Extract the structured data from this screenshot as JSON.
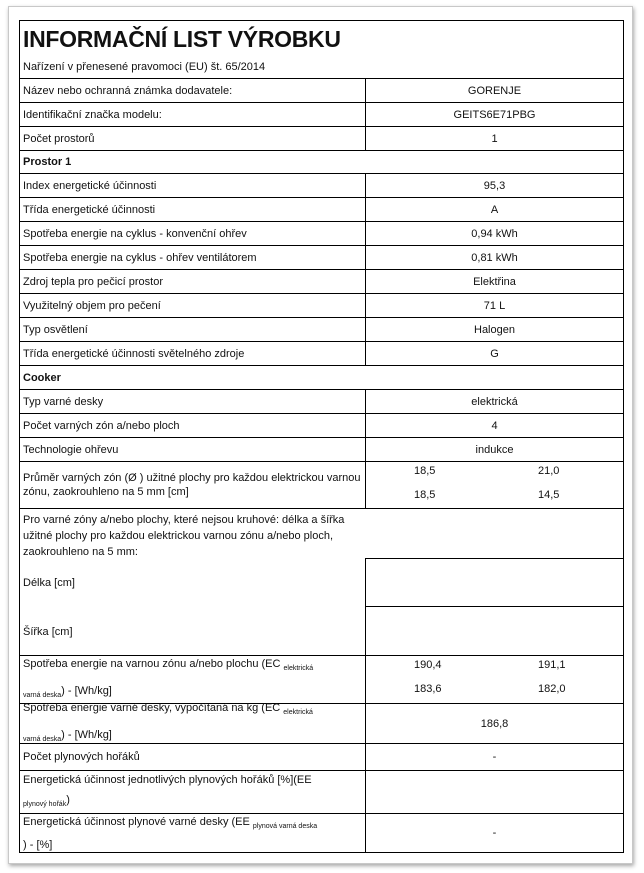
{
  "title": "INFORMAČNÍ LIST VÝROBKU",
  "regulation": "Nařízení v přenesené pravomoci (EU) št. 65/2014",
  "rows": [
    {
      "label": "Název nebo ochranná známka dodavatele:",
      "value": "GORENJE"
    },
    {
      "label": "Identifikační značka modelu:",
      "value": "GEITS6E71PBG"
    },
    {
      "label": "Počet prostorů",
      "value": "1"
    }
  ],
  "section1": "Prostor 1",
  "oven": [
    {
      "label": "Index energetické účinnosti",
      "value": "95,3"
    },
    {
      "label": "Třída energetické účinnosti",
      "value": "A"
    },
    {
      "label": "Spotřeba energie na cyklus - konvenční ohřev",
      "value": "0,94 kWh"
    },
    {
      "label": "Spotřeba energie na cyklus - ohřev ventilátorem",
      "value": "0,81 kWh"
    },
    {
      "label": "Zdroj tepla pro pečicí prostor",
      "value": "Elektřina"
    },
    {
      "label": "Využitelný objem pro pečení",
      "value": "71 L"
    },
    {
      "label": "Typ osvětlení",
      "value": "Halogen"
    },
    {
      "label": "Třída energetické účinnosti světelného zdroje",
      "value": "G"
    }
  ],
  "section2": "Cooker",
  "cooker": [
    {
      "label": "Typ varné desky",
      "value": "elektrická"
    },
    {
      "label": "Počet varných zón a/nebo ploch",
      "value": "4"
    },
    {
      "label": "Technologie ohřevu",
      "value": "indukce"
    }
  ],
  "diameter": {
    "label": "Průměr varných zón  (Ø ) užitné plochy pro každou elektrickou varnou zónu, zaokrouhleno na 5 mm [cm]",
    "values": [
      "18,5",
      "21,0",
      "18,5",
      "14,5"
    ]
  },
  "noncircular": {
    "label": "Pro varné zóny a/nebo plochy, které nejsou kruhové: délka a šířka užitné plochy pro každou elektrickou varnou zónu a/nebo ploch, zaokrouhleno na 5 mm:",
    "length": "Délka [cm]",
    "width": "Šířka [cm]"
  },
  "ec_zone": {
    "label_a": "Spotřeba energie na varnou zónu a/nebo plochu (EC ",
    "sub_a": "elektrická",
    "sub_b": "varná deska",
    "label_b": ") - [Wh/kg]",
    "values": [
      "190,4",
      "191,1",
      "183,6",
      "182,0"
    ]
  },
  "ec_hob": {
    "label_a": "Spotřeba energie varné desky, vypočítaná na kg (EC ",
    "sub_a": "elektrická",
    "sub_b": "varná deska",
    "label_b": ") - [Wh/kg]",
    "value": "186,8"
  },
  "gas_burners": {
    "label": "Počet plynových hořáků",
    "value": "-"
  },
  "ee_burner": {
    "label_a": "Energetická účinnost jednotlivých plynových hořáků [%](EE",
    "sub": "plynový hořák",
    "label_b": ")"
  },
  "ee_hob": {
    "label_a": "Energetická účinnost plynové varné desky  (EE ",
    "sub": "plynová varná deska",
    "label_b": ") - [%]",
    "value": "-"
  }
}
